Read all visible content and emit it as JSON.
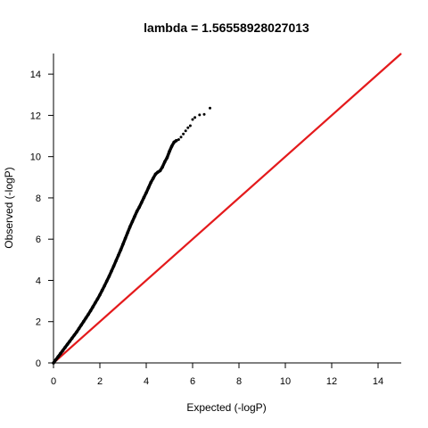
{
  "chart_data": {
    "type": "scatter",
    "title": "lambda = 1.56558928027013",
    "xlabel": "Expected (-logP)",
    "ylabel": "Observed (-logP)",
    "xlim": [
      0,
      15
    ],
    "ylim": [
      0,
      15
    ],
    "x_ticks": [
      0,
      2,
      4,
      6,
      8,
      10,
      12,
      14
    ],
    "y_ticks": [
      0,
      2,
      4,
      6,
      8,
      10,
      12,
      14
    ],
    "grid": false,
    "legend": "none",
    "reference_line": {
      "x": [
        0,
        15
      ],
      "y": [
        0,
        15
      ],
      "color": "#e41a1c"
    },
    "point_color": "#000000",
    "series": [
      {
        "x": [
          0.0,
          0.1,
          0.2,
          0.3,
          0.4,
          0.5,
          0.6,
          0.7,
          0.8,
          0.9,
          1.0,
          1.1,
          1.2,
          1.3,
          1.4,
          1.5,
          1.6,
          1.7,
          1.8,
          1.9,
          2.0,
          2.1,
          2.2,
          2.3,
          2.4,
          2.5,
          2.6,
          2.7,
          2.8,
          2.9,
          3.0,
          3.1,
          3.2,
          3.3,
          3.4,
          3.5,
          3.6,
          3.7,
          3.8,
          3.9,
          4.0,
          4.1,
          4.2,
          4.3,
          4.4,
          4.5,
          4.6,
          4.7,
          4.8,
          4.9,
          5.0,
          5.1,
          5.2,
          5.3,
          5.4,
          5.5,
          5.6,
          5.7,
          5.8,
          5.9,
          6.0,
          6.1,
          6.3,
          6.5,
          6.75
        ],
        "y": [
          0.0,
          0.15,
          0.3,
          0.45,
          0.6,
          0.75,
          0.9,
          1.05,
          1.2,
          1.35,
          1.5,
          1.67,
          1.84,
          2.01,
          2.18,
          2.35,
          2.53,
          2.72,
          2.91,
          3.1,
          3.3,
          3.52,
          3.74,
          3.97,
          4.2,
          4.45,
          4.7,
          4.96,
          5.22,
          5.48,
          5.76,
          6.04,
          6.32,
          6.6,
          6.85,
          7.1,
          7.35,
          7.55,
          7.78,
          8.02,
          8.25,
          8.5,
          8.75,
          8.95,
          9.15,
          9.25,
          9.32,
          9.5,
          9.75,
          9.95,
          10.25,
          10.5,
          10.7,
          10.78,
          10.83,
          10.95,
          11.1,
          11.25,
          11.4,
          11.5,
          11.8,
          11.9,
          12.02,
          12.05,
          12.35
        ]
      }
    ]
  }
}
